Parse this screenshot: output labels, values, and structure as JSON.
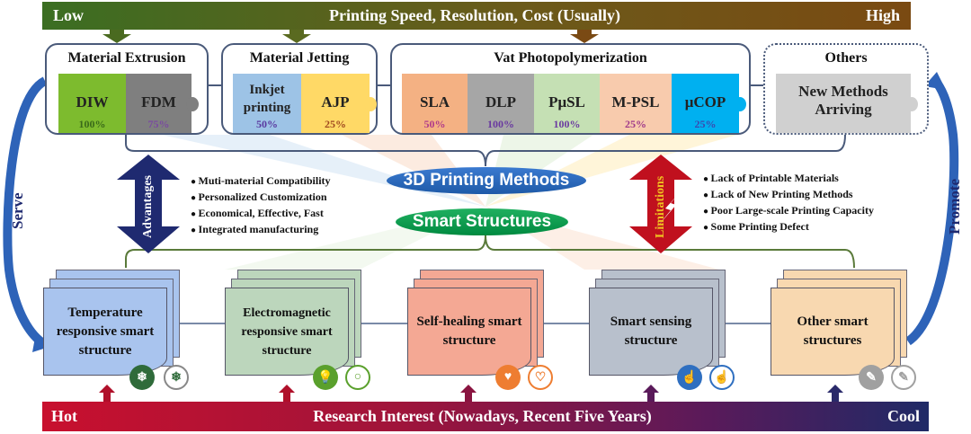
{
  "top_bar": {
    "low": "Low",
    "title": "Printing Speed, Resolution, Cost (Usually)",
    "high": "High"
  },
  "groups": [
    {
      "title": "Material Extrusion",
      "pieces": [
        {
          "name": "DIW",
          "percent": "100%",
          "color": "#7dbb2e"
        },
        {
          "name": "FDM",
          "percent": "75%",
          "color": "#7f7f7f"
        }
      ]
    },
    {
      "title": "Material Jetting",
      "pieces": [
        {
          "name": "Inkjet printing",
          "percent": "50%",
          "color": "#9dc3e6"
        },
        {
          "name": "AJP",
          "percent": "25%",
          "color": "#ffd966"
        }
      ]
    },
    {
      "title": "Vat Photopolymerization",
      "pieces": [
        {
          "name": "SLA",
          "percent": "50%",
          "color": "#f4b183"
        },
        {
          "name": "DLP",
          "percent": "100%",
          "color": "#a6a6a6"
        },
        {
          "name": "PμSL",
          "percent": "100%",
          "color": "#c5e0b4"
        },
        {
          "name": "M-PSL",
          "percent": "25%",
          "color": "#f8cbad"
        },
        {
          "name": "μCOP",
          "percent": "25%",
          "color": "#00b0f0"
        }
      ]
    },
    {
      "title": "Others",
      "pieces": [
        {
          "name": "New Methods Arriving",
          "color": "#d0d0d0"
        }
      ]
    }
  ],
  "center": {
    "methods": "3D Printing Methods",
    "structures": "Smart Structures"
  },
  "advantages": {
    "label": "Advantages",
    "items": [
      "Muti-material Compatibility",
      "Personalized Customization",
      "Economical, Effective, Fast",
      "Integrated manufacturing"
    ]
  },
  "limitations": {
    "label": "Limitations",
    "items": [
      "Lack of Printable Materials",
      "Lack of New Printing Methods",
      "Poor Large-scale Printing Capacity",
      "Some Printing Defect"
    ]
  },
  "side": {
    "left": "Serve",
    "right": "Promote"
  },
  "structures": [
    {
      "name": "Temperature responsive smart structure",
      "color": "#a9c4ee",
      "icon_color": "#2f6b3a"
    },
    {
      "name": "Electromagnetic responsive smart structure",
      "color": "#bcd6bc",
      "icon_color": "#5aa02c"
    },
    {
      "name": "Self-healing smart structure",
      "color": "#f4a894",
      "icon_color": "#ee7d31"
    },
    {
      "name": "Smart sensing structure",
      "color": "#b8c0cc",
      "icon_color": "#2f6fc0"
    },
    {
      "name": "Other smart structures",
      "color": "#f8d8b0",
      "icon_color": "#a0a0a0"
    }
  ],
  "bottom_bar": {
    "hot": "Hot",
    "title": "Research Interest (Nowadays, Recent Five Years)",
    "cool": "Cool"
  }
}
